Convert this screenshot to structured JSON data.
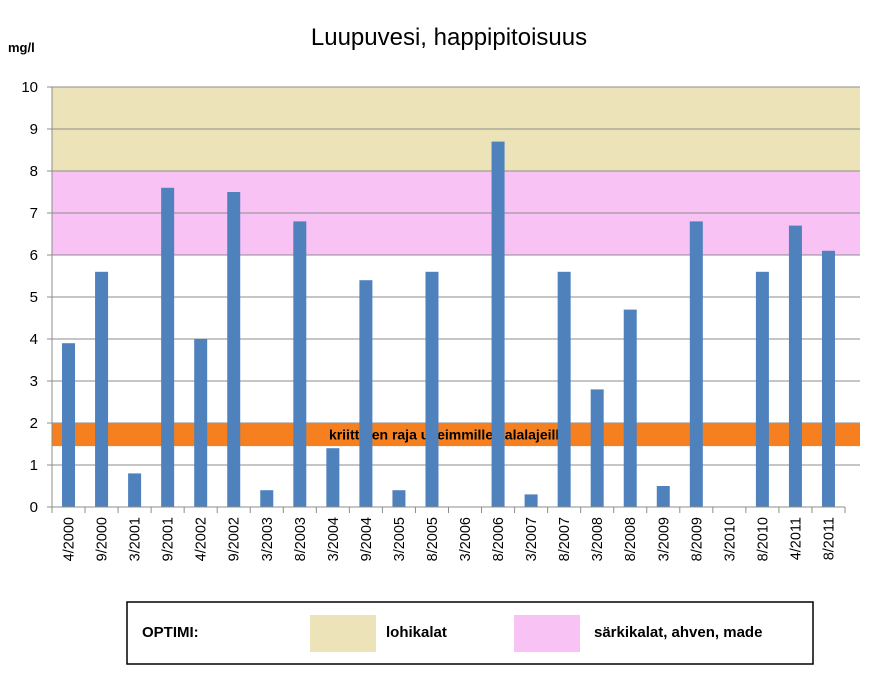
{
  "chart_data": {
    "type": "bar",
    "title": "Luupuvesi, happipitoisuus",
    "ylabel": "mg/l",
    "xlabel": "",
    "ylim": [
      0,
      10
    ],
    "yticks": [
      0,
      1,
      2,
      3,
      4,
      5,
      6,
      7,
      8,
      9,
      10
    ],
    "grid": true,
    "categories": [
      "4/2000",
      "9/2000",
      "3/2001",
      "9/2001",
      "4/2002",
      "9/2002",
      "3/2003",
      "8/2003",
      "3/2004",
      "9/2004",
      "3/2005",
      "8/2005",
      "3/2006",
      "8/2006",
      "3/2007",
      "8/2007",
      "3/2008",
      "8/2008",
      "3/2009",
      "8/2009",
      "3/2010",
      "8/2010",
      "4/2011",
      "8/2011"
    ],
    "series": [
      {
        "values": [
          3.9,
          5.6,
          0.8,
          7.6,
          4.0,
          7.5,
          0.4,
          6.8,
          1.4,
          5.4,
          0.4,
          5.6,
          0,
          8.7,
          0.3,
          5.6,
          2.8,
          4.7,
          0.5,
          6.8,
          0,
          5.6,
          6.7,
          6.1
        ]
      }
    ],
    "bands": [
      {
        "name": "lohikalat",
        "from": 8,
        "to": 10,
        "color": "#ede3b9"
      },
      {
        "name": "särkikalat, ahven, made",
        "from": 6,
        "to": 8,
        "color": "#f9c2f4"
      }
    ],
    "critical_band": {
      "label": "kriittinen raja useimmille kalalajeille",
      "from": 1.45,
      "to": 2.0,
      "color": "#f6801f"
    },
    "bar_color": "#4f81bd"
  },
  "legend": {
    "title": "OPTIMI:",
    "items": [
      {
        "label": "lohikalat",
        "color": "#ede3b9"
      },
      {
        "label": "särkikalat, ahven, made",
        "color": "#f9c2f4"
      }
    ]
  }
}
